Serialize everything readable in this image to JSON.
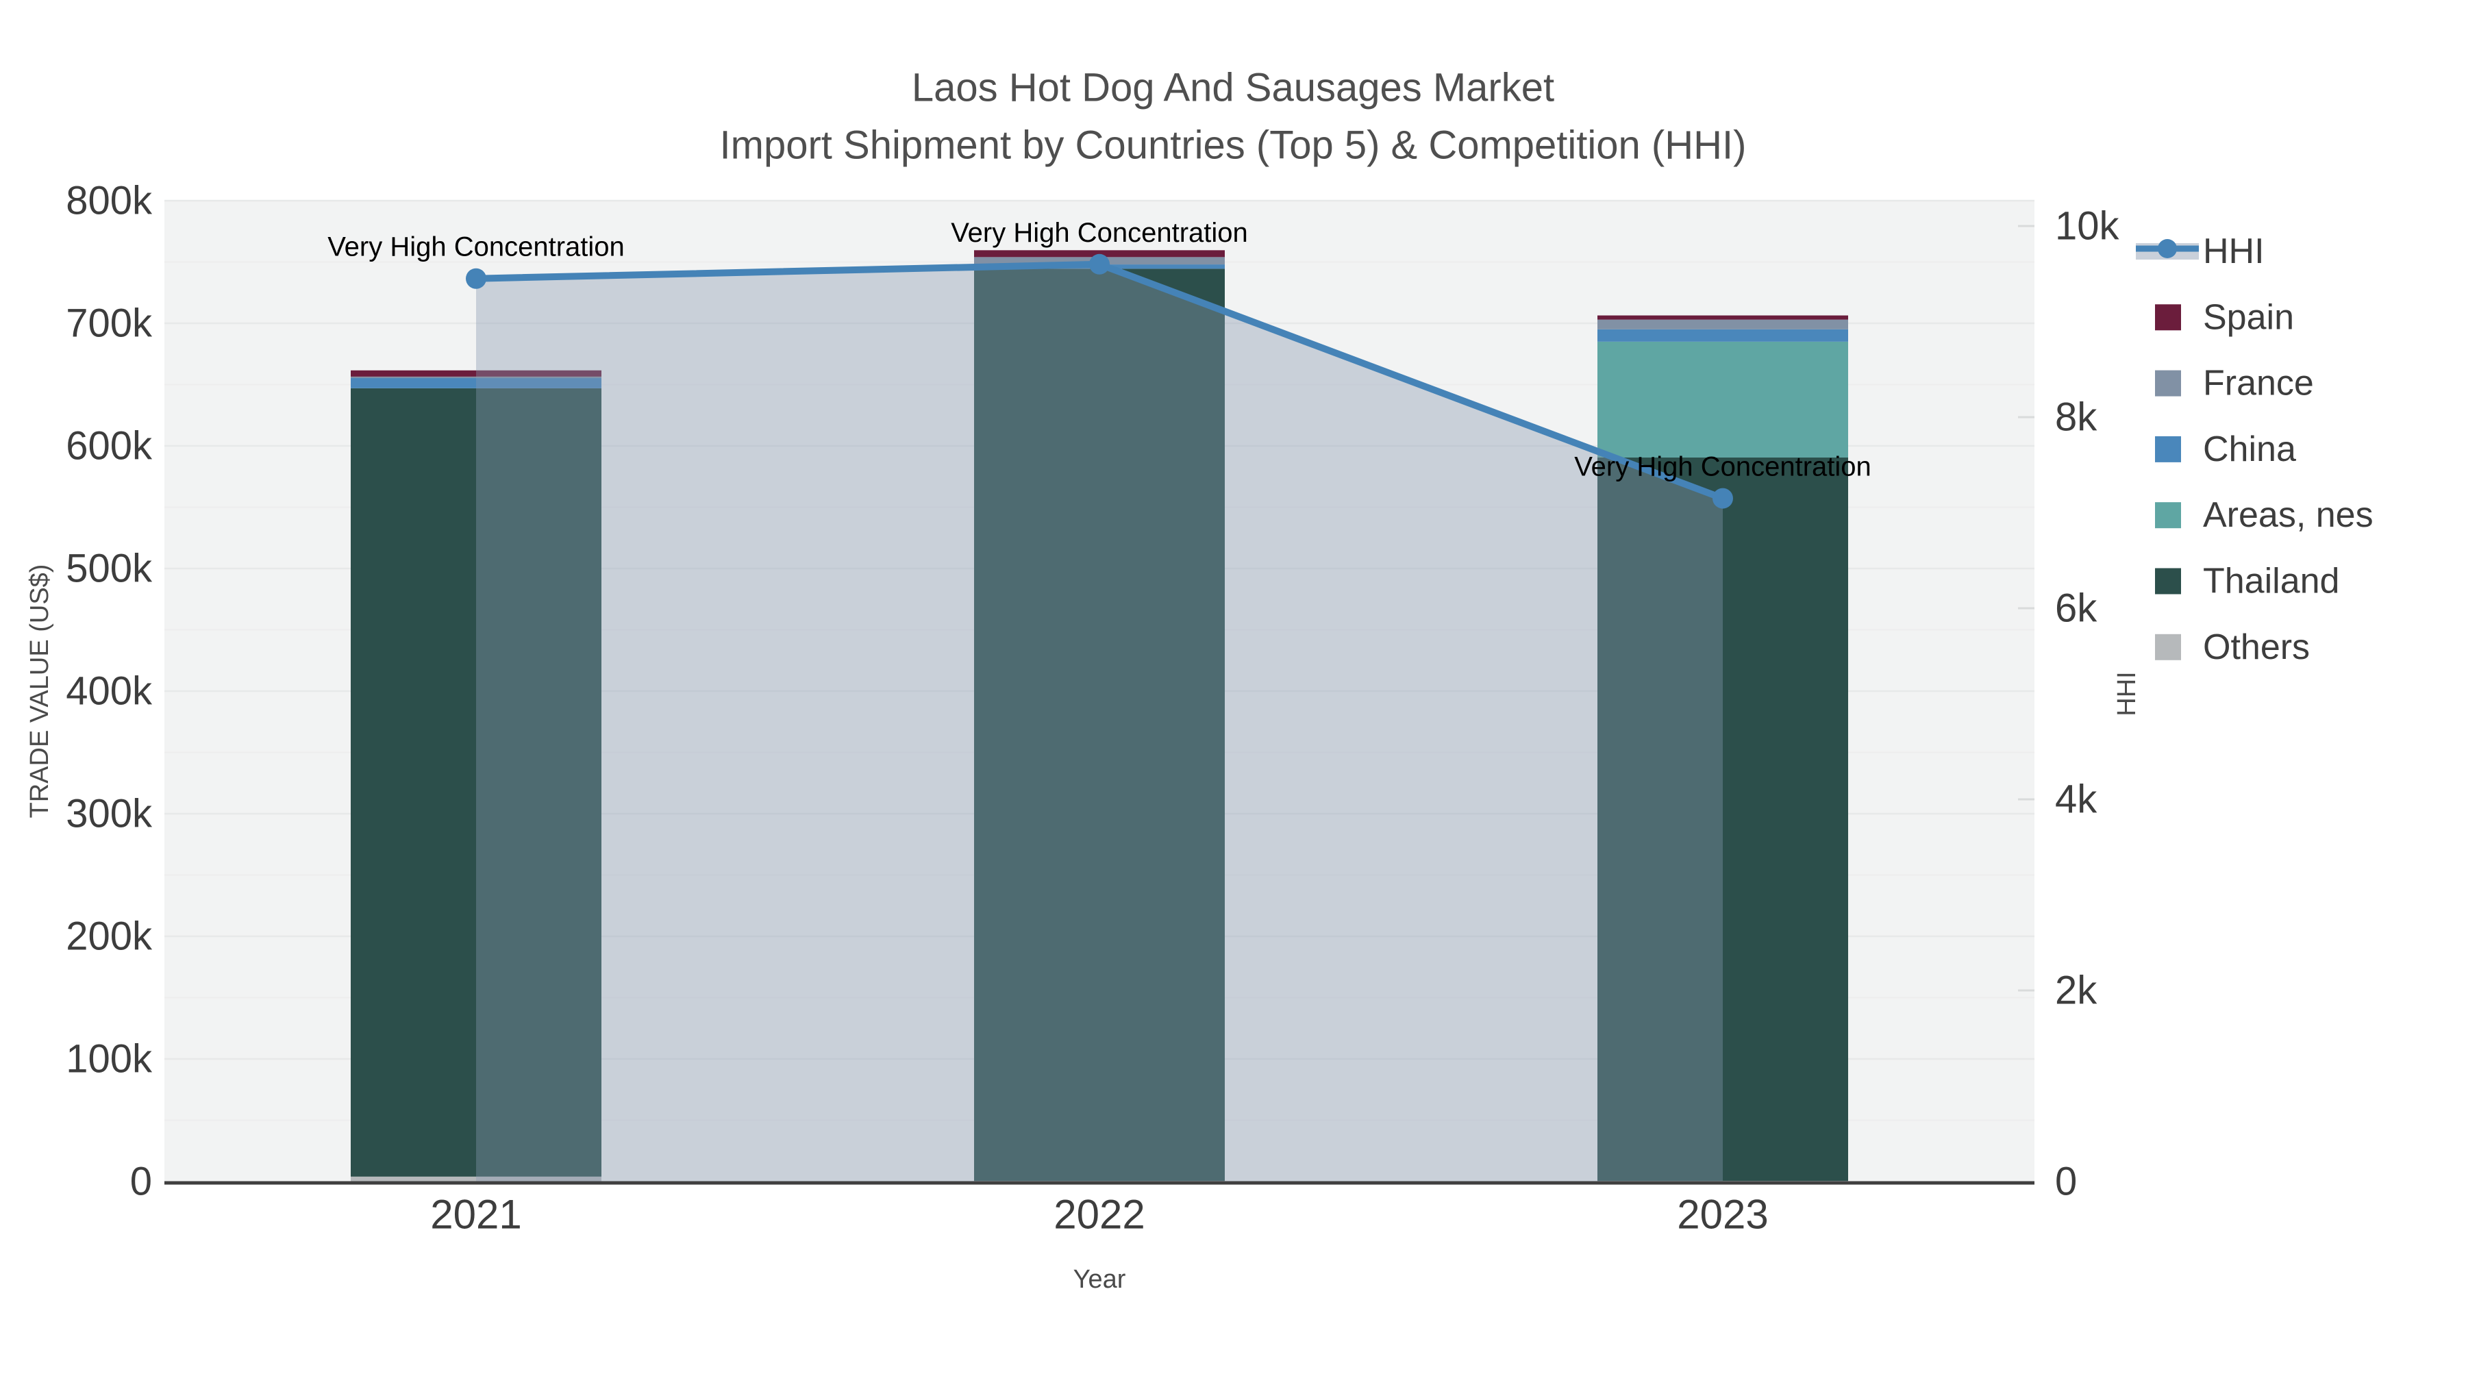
{
  "title": {
    "line1": "Laos Hot Dog And Sausages Market",
    "line2": "Import Shipment by Countries (Top 5) & Competition (HHI)"
  },
  "chart_data": {
    "type": "bar",
    "stacked": true,
    "categories": [
      "2021",
      "2022",
      "2023"
    ],
    "series": [
      {
        "name": "Others",
        "color": "#b6b9bb",
        "values": [
          4000,
          500,
          500
        ]
      },
      {
        "name": "Thailand",
        "color": "#2c4f4b",
        "values": [
          643000,
          744000,
          590000
        ]
      },
      {
        "name": "Areas, nes",
        "color": "#5fa6a3",
        "values": [
          0,
          0,
          94500
        ]
      },
      {
        "name": "China",
        "color": "#4a87bb",
        "values": [
          8300,
          3500,
          10100
        ]
      },
      {
        "name": "France",
        "color": "#8191a5",
        "values": [
          1200,
          6000,
          7900
        ]
      },
      {
        "name": "Spain",
        "color": "#6b1d3c",
        "values": [
          5100,
          5600,
          3400
        ]
      }
    ],
    "line_series": {
      "name": "HHI",
      "color": "#4583b7",
      "fill_color": "rgba(134,152,177,0.38)",
      "legend_band_color": "#c9d0da",
      "values": [
        9450,
        9600,
        7150
      ],
      "axis": "right"
    },
    "annotations": [
      {
        "text": "Very High Concentration",
        "category": "2021"
      },
      {
        "text": "Very High Concentration",
        "category": "2022"
      },
      {
        "text": "Very High Concentration",
        "category": "2023"
      }
    ],
    "xlabel": "Year",
    "ylabel_left": "TRADE VALUE (US$)",
    "ylabel_right": "HHI",
    "y_left": {
      "min": 0,
      "max": 800000,
      "tick_step": 100000,
      "tick_labels": [
        "0",
        "100k",
        "200k",
        "300k",
        "400k",
        "500k",
        "600k",
        "700k",
        "800k"
      ]
    },
    "y_right": {
      "min": 0,
      "max": 10000,
      "tick_step": 2000,
      "tick_labels": [
        "0",
        "2k",
        "4k",
        "6k",
        "8k",
        "10k"
      ]
    },
    "legend": [
      "HHI",
      "Spain",
      "France",
      "China",
      "Areas, nes",
      "Thailand",
      "Others"
    ],
    "grid": true,
    "legend_position": "right"
  },
  "style_colors": {
    "plot_bg": "#f2f3f3",
    "grid_major": "#e7e9e9",
    "grid_minor": "#ededee",
    "axis_line": "#3f3f3f",
    "tick_label": "#3d3d3d",
    "axis_title": "#4a4a4a",
    "chart_title": "#4f4f4f",
    "annotation": "#000000"
  }
}
